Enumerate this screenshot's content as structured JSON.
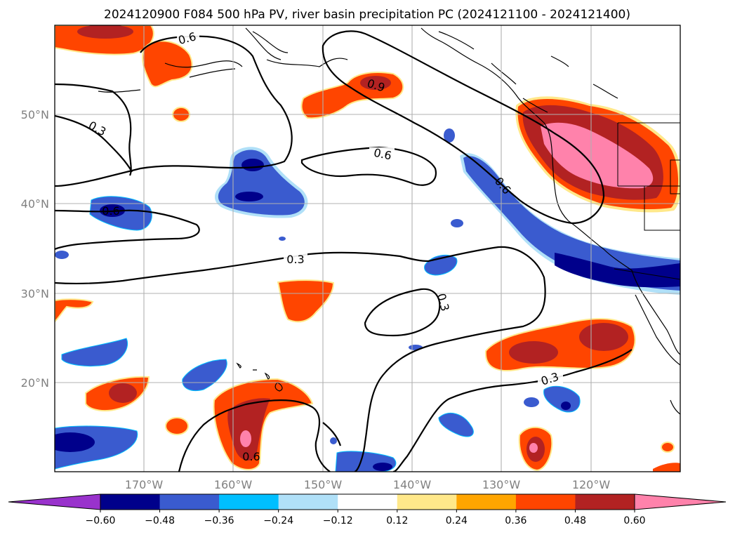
{
  "title": "2024120900 F084 500 hPa PV, river basin precipitation PC (2024121100 - 2024121400)",
  "map": {
    "lon_labels": [
      "170°W",
      "160°W",
      "150°W",
      "140°W",
      "130°W",
      "120°W"
    ],
    "lat_labels": [
      "50°N",
      "40°N",
      "30°N",
      "20°N"
    ],
    "contour_labels": [
      "0.6",
      "0.3",
      "0.9",
      "0.6",
      "0.6",
      "0.6",
      "0.3",
      "0.3",
      "0.3",
      "0.6"
    ],
    "colors": {
      "neg_060": "#9932cc",
      "neg_048": "#00008b",
      "neg_036": "#3a5bcf",
      "neg_024": "#00bfff",
      "neg_012": "#b0e0f8",
      "pos_012": "#ffe88a",
      "pos_024": "#ffa500",
      "pos_036": "#ff4500",
      "pos_048": "#b22222",
      "pos_060": "#ff82ab"
    }
  },
  "colorbar": {
    "ticks": [
      "−0.60",
      "−0.48",
      "−0.36",
      "−0.24",
      "−0.12",
      "0.12",
      "0.24",
      "0.36",
      "0.48",
      "0.60"
    ],
    "bins": [
      "#9932cc",
      "#00008b",
      "#3a5bcf",
      "#00bfff",
      "#b0e0f8",
      "#ffffff",
      "#ffe88a",
      "#ffa500",
      "#ff4500",
      "#b22222",
      "#ff82ab"
    ]
  }
}
